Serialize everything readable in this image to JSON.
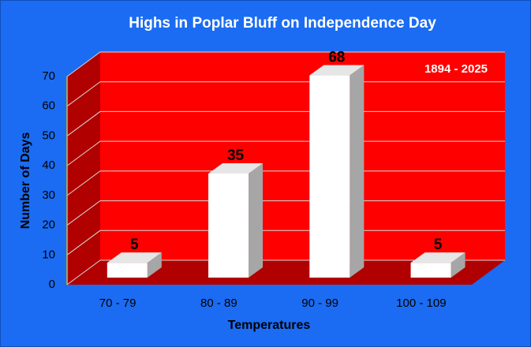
{
  "chart_data": {
    "type": "bar",
    "title": "Highs in Poplar Bluff on Independence Day",
    "annotation": "1894 - 2025",
    "x_label": "Temperatures",
    "y_label": "Number of Days",
    "categories": [
      "70 - 79",
      "80 - 89",
      "90 - 99",
      "100 - 109"
    ],
    "values": [
      5,
      35,
      68,
      5
    ],
    "color": "#ffffff",
    "ylim": [
      0,
      70
    ],
    "yticks": [
      0,
      10,
      20,
      30,
      40,
      50,
      60,
      70
    ],
    "grid": true
  }
}
